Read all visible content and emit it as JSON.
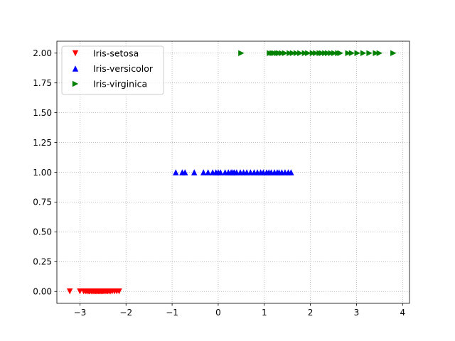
{
  "chart_data": {
    "type": "scatter",
    "title": "",
    "xlabel": "",
    "ylabel": "",
    "xlim": [
      -3.5,
      4.15
    ],
    "ylim": [
      -0.1,
      2.1
    ],
    "xticks": [
      -3,
      -2,
      -1,
      0,
      1,
      2,
      3,
      4
    ],
    "xtick_labels": [
      "−3",
      "−2",
      "−1",
      "0",
      "1",
      "2",
      "3",
      "4"
    ],
    "yticks": [
      0.0,
      0.25,
      0.5,
      0.75,
      1.0,
      1.25,
      1.5,
      1.75,
      2.0
    ],
    "ytick_labels": [
      "0.00",
      "0.25",
      "0.50",
      "0.75",
      "1.00",
      "1.25",
      "1.50",
      "1.75",
      "2.00"
    ],
    "grid": true,
    "legend_position": "top-left",
    "series": [
      {
        "name": "Iris-setosa",
        "marker": "triangle-down",
        "color": "#ff0000",
        "y": 0,
        "x": [
          -3.22,
          -3.0,
          -2.92,
          -2.88,
          -2.85,
          -2.82,
          -2.8,
          -2.78,
          -2.75,
          -2.72,
          -2.7,
          -2.68,
          -2.66,
          -2.64,
          -2.62,
          -2.6,
          -2.58,
          -2.56,
          -2.54,
          -2.52,
          -2.5,
          -2.48,
          -2.45,
          -2.42,
          -2.4,
          -2.37,
          -2.34,
          -2.3,
          -2.25,
          -2.2,
          -2.15
        ]
      },
      {
        "name": "Iris-versicolor",
        "marker": "triangle-up",
        "color": "#0000ff",
        "y": 1,
        "x": [
          -0.92,
          -0.78,
          -0.72,
          -0.52,
          -0.32,
          -0.22,
          -0.12,
          -0.05,
          0.0,
          0.05,
          0.15,
          0.22,
          0.28,
          0.32,
          0.35,
          0.4,
          0.48,
          0.55,
          0.62,
          0.7,
          0.78,
          0.85,
          0.92,
          0.98,
          1.05,
          1.1,
          1.15,
          1.22,
          1.28,
          1.32,
          1.38,
          1.45,
          1.52,
          1.58
        ]
      },
      {
        "name": "Iris-virginica",
        "marker": "triangle-right",
        "color": "#008000",
        "y": 2,
        "x": [
          0.5,
          1.12,
          1.18,
          1.22,
          1.28,
          1.32,
          1.38,
          1.45,
          1.55,
          1.62,
          1.7,
          1.78,
          1.88,
          1.95,
          2.05,
          2.12,
          2.2,
          2.25,
          2.32,
          2.38,
          2.45,
          2.52,
          2.6,
          2.65,
          2.82,
          2.9,
          3.02,
          3.15,
          3.28,
          3.42,
          3.5,
          3.8
        ]
      }
    ]
  }
}
